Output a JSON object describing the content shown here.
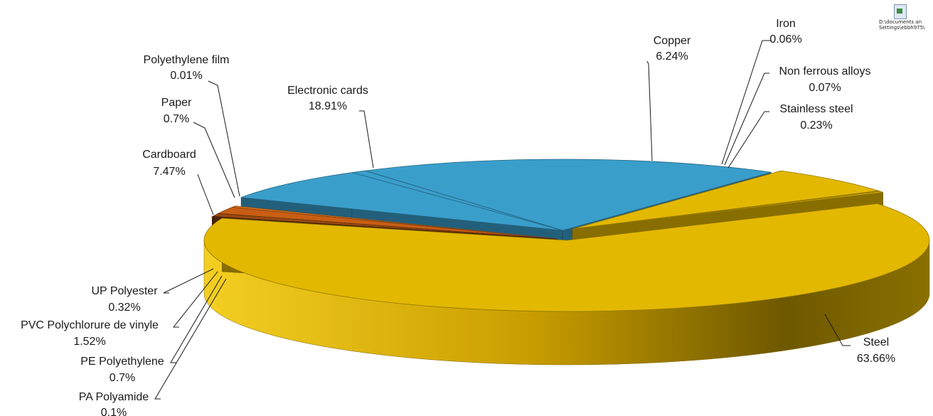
{
  "file_icon": {
    "name": "spreadsheet-file-icon",
    "caption_line1": "D:\\documents an",
    "caption_line2": "Settings\\ebbh975\\"
  },
  "chart_data": {
    "type": "pie",
    "title": "",
    "style": "3d-exploded",
    "slices": [
      {
        "label": "Iron",
        "value": 0.06,
        "value_label": "0.06%",
        "color": "#e3b800"
      },
      {
        "label": "Non ferrous alloys",
        "value": 0.07,
        "value_label": "0.07%",
        "color": "#e3b800"
      },
      {
        "label": "Stainless steel",
        "value": 0.23,
        "value_label": "0.23%",
        "color": "#e3b800"
      },
      {
        "label": "Steel",
        "value": 63.66,
        "value_label": "63.66%",
        "color": "#e3b800"
      },
      {
        "label": "PA Polyamide",
        "value": 0.1,
        "value_label": "0.1%",
        "color": "#7a3b10"
      },
      {
        "label": "PE Polyethylene",
        "value": 0.7,
        "value_label": "0.7%",
        "color": "#9a4a12"
      },
      {
        "label": "PVC Polychlorure de vinyle",
        "value": 1.52,
        "value_label": "1.52%",
        "color": "#c85e14"
      },
      {
        "label": "UP Polyester",
        "value": 0.32,
        "value_label": "0.32%",
        "color": "#e07a20"
      },
      {
        "label": "Cardboard",
        "value": 7.47,
        "value_label": "7.47%",
        "color": "#3a9ecb"
      },
      {
        "label": "Paper",
        "value": 0.7,
        "value_label": "0.7%",
        "color": "#3a9ecb"
      },
      {
        "label": "Polyethylene film",
        "value": 0.01,
        "value_label": "0.01%",
        "color": "#3a9ecb"
      },
      {
        "label": "Electronic cards",
        "value": 18.91,
        "value_label": "18.91%",
        "color": "#3a9ecb"
      },
      {
        "label": "Copper",
        "value": 6.24,
        "value_label": "6.24%",
        "color": "#e3b800"
      }
    ]
  }
}
